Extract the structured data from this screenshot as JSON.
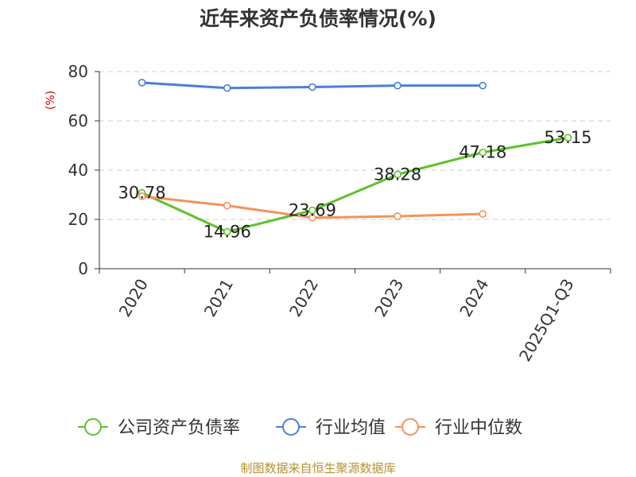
{
  "title": "近年来资产负债率情况(%)",
  "source": "制图数据来自恒生聚源数据库",
  "chart_data": {
    "type": "line",
    "title": "近年来资产负债率情况(%)",
    "ylabel": "(%)",
    "categories": [
      "2020",
      "2021",
      "2022",
      "2023",
      "2024",
      "2025Q1-Q3"
    ],
    "ylim": [
      0,
      80
    ],
    "yticks": [
      0,
      20,
      40,
      60,
      80
    ],
    "grid": true,
    "legend_position": "bottom",
    "series": [
      {
        "name": "公司资产负债率",
        "color": "#5cc22b",
        "values": [
          30.78,
          14.96,
          23.69,
          38.28,
          47.18,
          53.15
        ],
        "labels": true
      },
      {
        "name": "行业均值",
        "color": "#4a7fdc",
        "values": [
          75.5,
          73.3,
          73.7,
          74.3,
          74.3,
          null
        ],
        "labels": false
      },
      {
        "name": "行业中位数",
        "color": "#f4925c",
        "values": [
          29.4,
          25.6,
          20.7,
          21.3,
          22.2,
          null
        ],
        "labels": false
      }
    ]
  }
}
